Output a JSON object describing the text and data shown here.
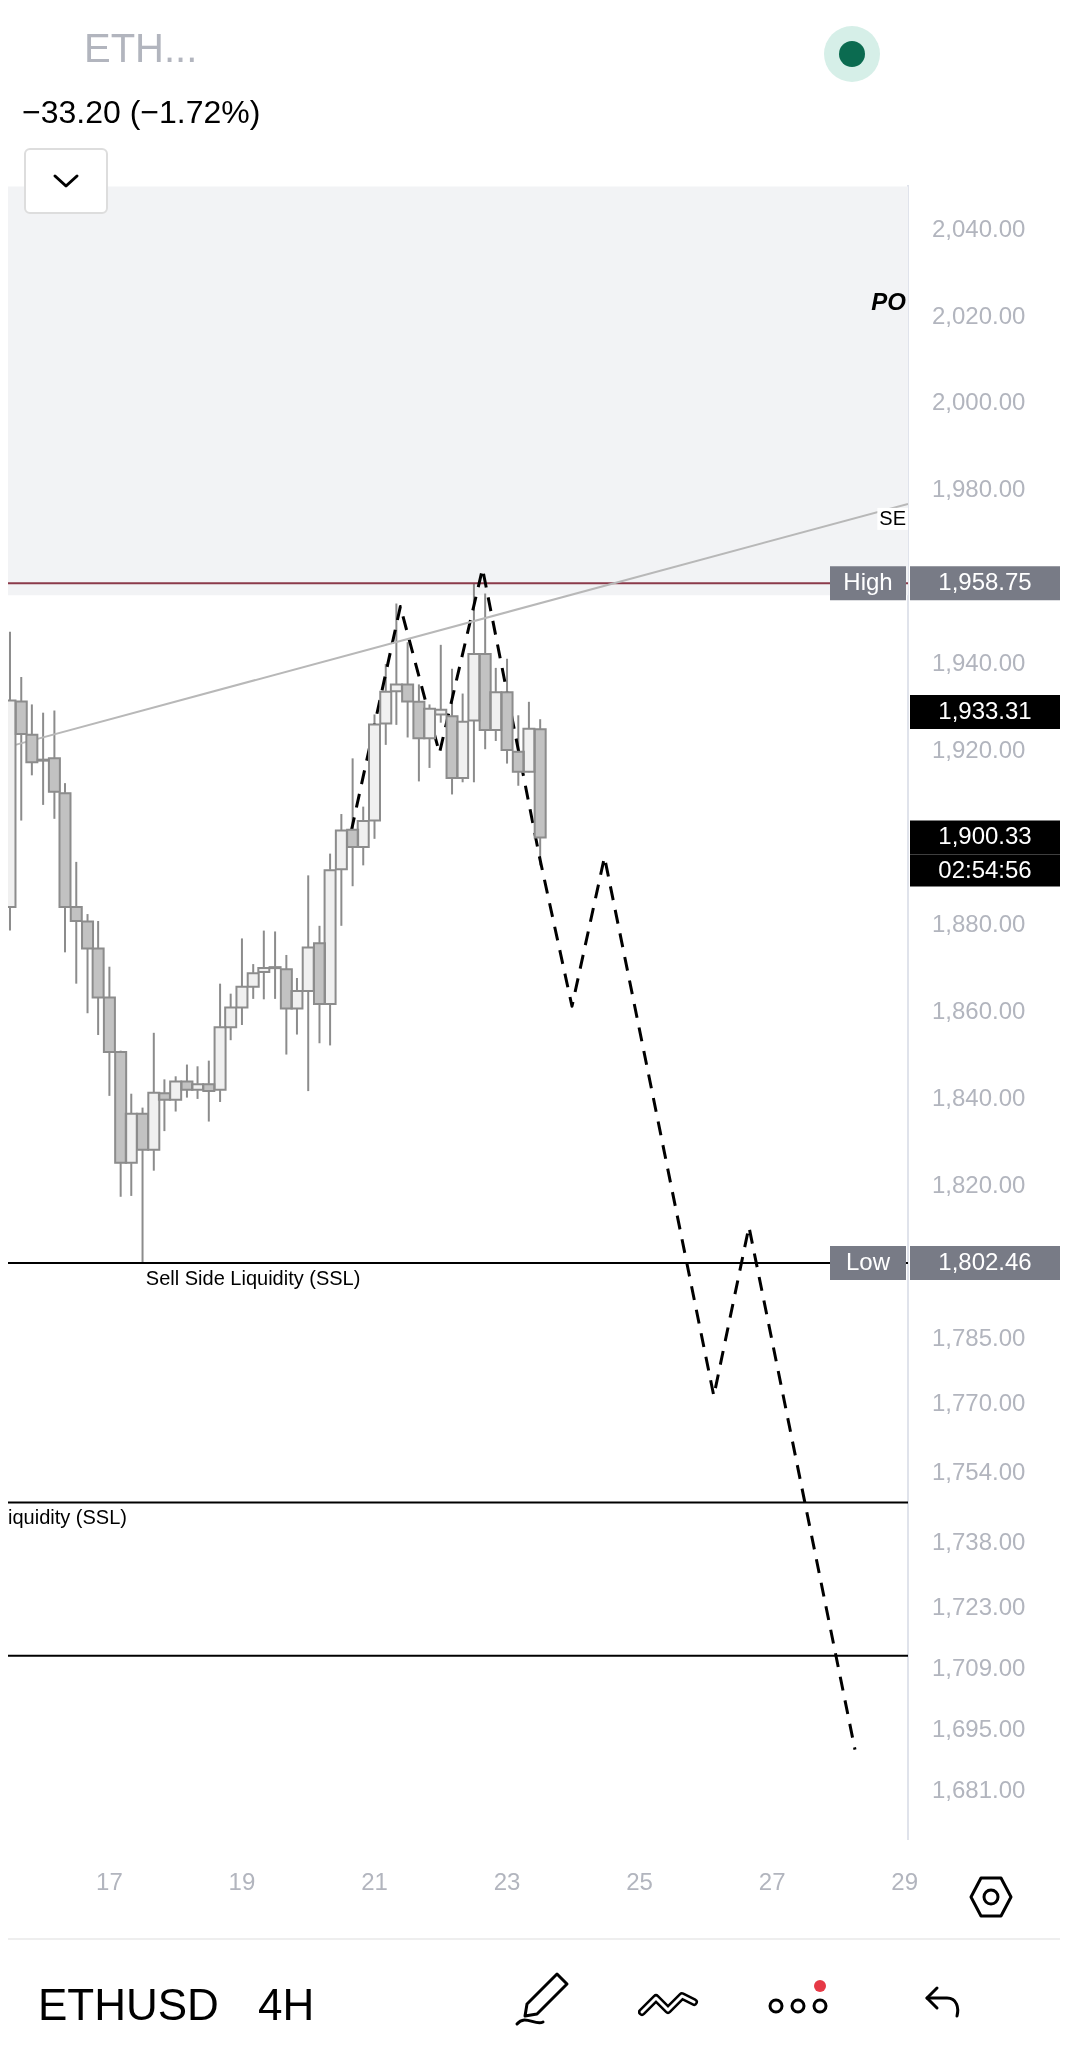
{
  "chart_data": {
    "type": "candlestick",
    "title": "ETH...",
    "subtitle": "−33.20 (−1.72%)",
    "x": [
      15.5,
      15.67,
      15.83,
      16,
      16.17,
      16.33,
      16.5,
      16.67,
      16.83,
      17,
      17.17,
      17.33,
      17.5,
      17.67,
      17.83,
      18,
      18.17,
      18.33,
      18.5,
      18.67,
      18.83,
      19,
      19.17,
      19.33,
      19.5,
      19.67,
      19.83,
      20,
      20.17,
      20.33,
      20.5,
      20.67,
      20.83,
      21,
      21.17,
      21.33,
      21.5,
      21.67,
      21.83,
      22,
      22.17,
      22.33,
      22.5,
      22.67,
      22.83,
      23,
      23.17,
      23.33,
      23.5
    ],
    "ohlc": [
      [
        1884.3,
        1947.6,
        1878.9,
        1931.8
      ],
      [
        1931.6,
        1937.2,
        1904.2,
        1924.1
      ],
      [
        1923.9,
        1930.9,
        1914.6,
        1917.6
      ],
      [
        1918.2,
        1929,
        1907.8,
        1918
      ],
      [
        1918.5,
        1929.5,
        1904.6,
        1910.8
      ],
      [
        1910.5,
        1912.8,
        1873.9,
        1884.3
      ],
      [
        1884.3,
        1894.7,
        1866.7,
        1881.1
      ],
      [
        1881,
        1882.7,
        1859.9,
        1874.8
      ],
      [
        1874.8,
        1881.1,
        1854.9,
        1863.5
      ],
      [
        1863.5,
        1870.6,
        1840.9,
        1851
      ],
      [
        1851,
        1851.3,
        1817.7,
        1825.5
      ],
      [
        1825.5,
        1841.4,
        1817.9,
        1836.8
      ],
      [
        1836.8,
        1838.2,
        1802.46,
        1828.5
      ],
      [
        1828.5,
        1855.4,
        1823.7,
        1841.6
      ],
      [
        1841.5,
        1844.7,
        1832.8,
        1840
      ],
      [
        1840,
        1845.4,
        1837.3,
        1844.2
      ],
      [
        1844.2,
        1848.1,
        1840.5,
        1842.3
      ],
      [
        1842.3,
        1847.7,
        1840.2,
        1843.6
      ],
      [
        1843.6,
        1849,
        1835,
        1842
      ],
      [
        1842.3,
        1866.7,
        1839.5,
        1856.7
      ],
      [
        1856.7,
        1864.4,
        1853.7,
        1861.2
      ],
      [
        1861.2,
        1877.1,
        1857.2,
        1866
      ],
      [
        1866,
        1871.2,
        1863.2,
        1869.1
      ],
      [
        1869.4,
        1878.9,
        1863.1,
        1870.3
      ],
      [
        1870.5,
        1878.7,
        1863.2,
        1870.5
      ],
      [
        1870,
        1873.3,
        1850.4,
        1861
      ],
      [
        1861,
        1868,
        1855,
        1865
      ],
      [
        1865,
        1891.6,
        1842,
        1875
      ],
      [
        1876,
        1880,
        1853,
        1862
      ],
      [
        1862,
        1896.6,
        1852.5,
        1892.8
      ],
      [
        1893,
        1905.7,
        1880,
        1901.9
      ],
      [
        1902.1,
        1918.5,
        1889.1,
        1898.1
      ],
      [
        1898.1,
        1907.4,
        1893.9,
        1904.1
      ],
      [
        1904.2,
        1928.6,
        1900,
        1926.3
      ],
      [
        1926.5,
        1940.2,
        1921.6,
        1933.8
      ],
      [
        1933.9,
        1954.1,
        1926.2,
        1935.5
      ],
      [
        1935.5,
        1945.2,
        1923.3,
        1931.6
      ],
      [
        1931.5,
        1935.5,
        1913.2,
        1923.1
      ],
      [
        1923.1,
        1930.9,
        1916.3,
        1929.9
      ],
      [
        1928.6,
        1944.6,
        1926.7,
        1929.7
      ],
      [
        1928.2,
        1939.1,
        1910.2,
        1914
      ],
      [
        1914,
        1933.4,
        1913,
        1926.9
      ],
      [
        1927.2,
        1958.75,
        1913,
        1942.5
      ],
      [
        1942.5,
        1956.4,
        1920.6,
        1925
      ],
      [
        1925,
        1939.3,
        1922.5,
        1933.7
      ],
      [
        1933.7,
        1941.4,
        1917.3,
        1920.4
      ],
      [
        1920,
        1928.4,
        1912.2,
        1915.4
      ],
      [
        1915.4,
        1931.5,
        1915.3,
        1925.3
      ],
      [
        1925.2,
        1927.5,
        1893.9,
        1900.33
      ]
    ],
    "color": "#8c8c8c",
    "colors": [
      "#f0f0f0",
      "#c2c2c2",
      "#c2c2c2",
      "#c2c2c2",
      "#c2c2c2",
      "#c2c2c2",
      "#c2c2c2",
      "#c2c2c2",
      "#c2c2c2",
      "#c2c2c2",
      "#c2c2c2",
      "#f0f0f0",
      "#c2c2c2",
      "#f0f0f0",
      "#c2c2c2",
      "#f0f0f0",
      "#c2c2c2",
      "#f0f0f0",
      "#c2c2c2",
      "#f0f0f0",
      "#f0f0f0",
      "#f0f0f0",
      "#f0f0f0",
      "#f0f0f0",
      "#f0f0f0",
      "#c2c2c2",
      "#f0f0f0",
      "#f0f0f0",
      "#c2c2c2",
      "#f0f0f0",
      "#f0f0f0",
      "#c2c2c2",
      "#f0f0f0",
      "#f0f0f0",
      "#f0f0f0",
      "#f0f0f0",
      "#c2c2c2",
      "#c2c2c2",
      "#f0f0f0",
      "#f0f0f0",
      "#c2c2c2",
      "#f0f0f0",
      "#f0f0f0",
      "#c2c2c2",
      "#f0f0f0",
      "#c2c2c2",
      "#c2c2c2",
      "#f0f0f0",
      "#c2c2c2"
    ],
    "series": [
      {
        "type": "line",
        "color": "#b8b8b8",
        "x": [
          15.58,
          29.05
        ],
        "values": [
          1921.6,
          1977
        ]
      },
      {
        "type": "line",
        "color": "#000000",
        "line_style": "dashed",
        "x": [
          20.65,
          21.39,
          21.98,
          22.63,
          23.49,
          23.98,
          24.47,
          26.12,
          26.65,
          28.25
        ],
        "values": [
          1901.8,
          1953.4,
          1919.7,
          1962.1,
          1895.8,
          1861.5,
          1895.8,
          1771.9,
          1810.8,
          1690.6
        ]
      }
    ],
    "marker": "none",
    "xlim": [
      15.47,
      29.05
    ],
    "xticks": [
      17,
      19,
      21,
      23,
      25,
      27,
      29
    ],
    "ylim": [
      1670,
      2050
    ],
    "yticks": [
      {
        "value": 2040,
        "label": "2,040.00"
      },
      {
        "value": 2020,
        "label": "2,020.00"
      },
      {
        "value": 2000,
        "label": "2,000.00"
      },
      {
        "value": 1980,
        "label": "1,980.00"
      },
      {
        "value": 1940,
        "label": "1,940.00"
      },
      {
        "value": 1920,
        "label": "1,920.00"
      },
      {
        "value": 1880,
        "label": "1,880.00"
      },
      {
        "value": 1860,
        "label": "1,860.00"
      },
      {
        "value": 1840,
        "label": "1,840.00"
      },
      {
        "value": 1820,
        "label": "1,820.00"
      },
      {
        "value": 1785,
        "label": "1,785.00"
      },
      {
        "value": 1770,
        "label": "1,770.00"
      },
      {
        "value": 1754,
        "label": "1,754.00"
      },
      {
        "value": 1738,
        "label": "1,738.00"
      },
      {
        "value": 1723,
        "label": "1,723.00"
      },
      {
        "value": 1709,
        "label": "1,709.00"
      },
      {
        "value": 1695,
        "label": "1,695.00"
      },
      {
        "value": 1681,
        "label": "1,681.00"
      }
    ],
    "bands": [
      {
        "axis": "y",
        "from": 1956,
        "to": 2050,
        "label": "PO",
        "color": "#f2f3f5"
      }
    ],
    "ref_lines": [
      {
        "axis": "y",
        "value": 1958.75,
        "label": "High",
        "color": "#8b3a4a"
      },
      {
        "axis": "y",
        "value": 1802.46,
        "label": "Low",
        "color": "#000000"
      },
      {
        "axis": "y",
        "value": 1747.4,
        "color": "#000000"
      },
      {
        "axis": "y",
        "value": 1712.2,
        "color": "#000000"
      }
    ],
    "annotations": [
      {
        "text": "Sell Side Liquidity (SSL)",
        "x": 17.55,
        "y": 1802.46
      },
      {
        "text": "iquidity (SSL)",
        "x": 15.47,
        "y": 1747.4
      },
      {
        "text": "SE",
        "x": 29.05,
        "y": 1977
      },
      "1,958.75",
      "1,802.46",
      "1,900.33",
      "02:54:56",
      "1,933.31",
      "ETHUSD",
      "4H"
    ]
  }
}
